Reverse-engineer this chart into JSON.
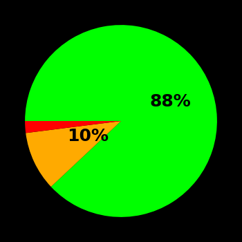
{
  "slices": [
    88,
    10,
    2
  ],
  "colors": [
    "#00ff00",
    "#ffaa00",
    "#ff0000"
  ],
  "labels": [
    "88%",
    "10%",
    ""
  ],
  "background_color": "#000000",
  "startangle": 180,
  "label_fontsize": 18,
  "label_color": "#000000",
  "label_radii": [
    0.55,
    0.38,
    0.0
  ]
}
